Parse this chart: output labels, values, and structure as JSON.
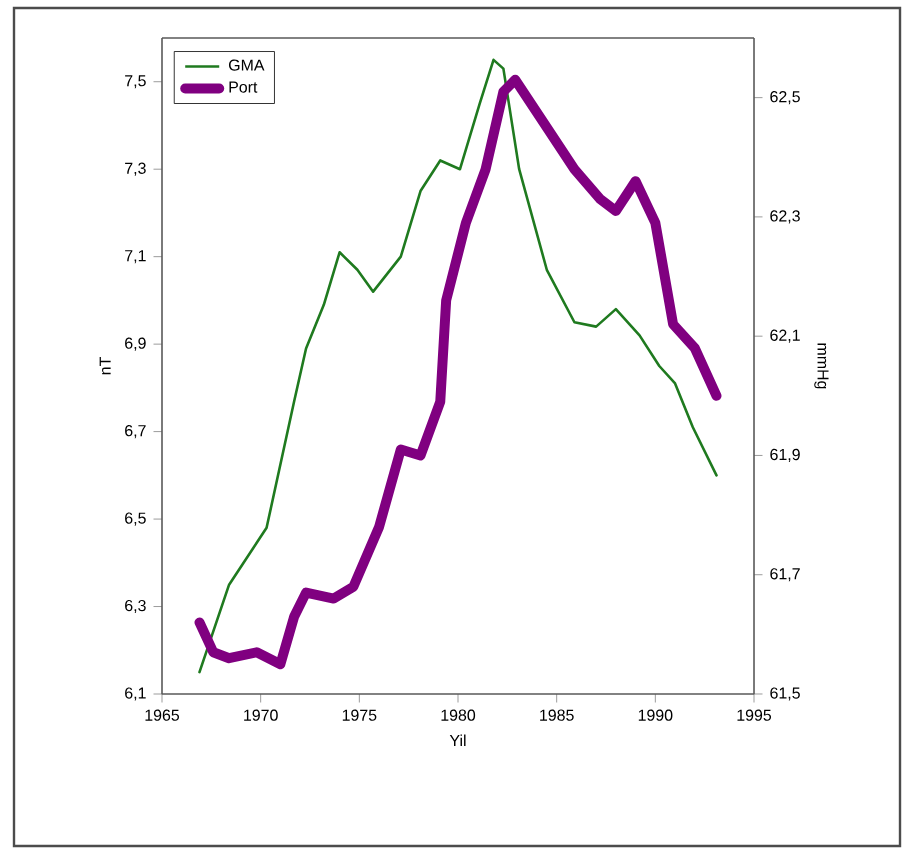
{
  "chart_data": {
    "type": "line",
    "xlabel": "Yil",
    "ylabel": "nT",
    "y2label": "mmHg",
    "xlim": [
      1965,
      1995
    ],
    "xticks": [
      1965,
      1970,
      1975,
      1980,
      1985,
      1990,
      1995
    ],
    "ylim": [
      6.1,
      7.6
    ],
    "yticks": [
      {
        "value": 6.1,
        "label": "6,1"
      },
      {
        "value": 6.3,
        "label": "6,3"
      },
      {
        "value": 6.5,
        "label": "6,5"
      },
      {
        "value": 6.7,
        "label": "6,7"
      },
      {
        "value": 6.9,
        "label": "6,9"
      },
      {
        "value": 7.1,
        "label": "7,1"
      },
      {
        "value": 7.3,
        "label": "7,3"
      },
      {
        "value": 7.5,
        "label": "7,5"
      }
    ],
    "y2lim": [
      61.5,
      62.6
    ],
    "y2ticks": [
      {
        "value": 61.5,
        "label": "61,5"
      },
      {
        "value": 61.7,
        "label": "61,7"
      },
      {
        "value": 61.9,
        "label": "61,9"
      },
      {
        "value": 62.1,
        "label": "62,1"
      },
      {
        "value": 62.3,
        "label": "62,3"
      },
      {
        "value": 62.5,
        "label": "62,5"
      }
    ],
    "legend": "top left",
    "grid": false,
    "marker": "none",
    "line_style": "solid",
    "series": [
      {
        "name": "GMA",
        "color": "#1f7a1f",
        "x": [
          1966.9,
          1968.4,
          1970.3,
          1971.7,
          1972.3,
          1973.2,
          1974.0,
          1974.9,
          1975.7,
          1977.1,
          1978.1,
          1979.1,
          1980.1,
          1981.1,
          1981.8,
          1982.3,
          1983.1,
          1984.5,
          1985.9,
          1987.0,
          1988.0,
          1989.2,
          1990.2,
          1991.0,
          1991.9,
          1993.1
        ],
        "values": [
          6.15,
          6.35,
          6.48,
          6.77,
          6.89,
          6.99,
          7.11,
          7.07,
          7.02,
          7.1,
          7.25,
          7.32,
          7.3,
          7.45,
          7.55,
          7.53,
          7.3,
          7.07,
          6.95,
          6.94,
          6.98,
          6.92,
          6.85,
          6.81,
          6.71,
          6.6
        ]
      },
      {
        "name": "Port",
        "color": "#800080",
        "axis": "y2",
        "x": [
          1966.9,
          1967.6,
          1968.4,
          1969.8,
          1971.0,
          1971.7,
          1972.3,
          1973.7,
          1974.7,
          1976.0,
          1977.1,
          1978.1,
          1979.1,
          1979.4,
          1980.4,
          1981.4,
          1982.3,
          1982.9,
          1984.1,
          1985.9,
          1987.2,
          1988.0,
          1989.0,
          1990.0,
          1990.9,
          1992.0,
          1993.1
        ],
        "values": [
          61.62,
          61.57,
          61.56,
          61.57,
          61.55,
          61.63,
          61.67,
          61.66,
          61.68,
          61.78,
          61.91,
          61.9,
          61.99,
          62.16,
          62.29,
          62.38,
          62.51,
          62.53,
          62.47,
          62.38,
          62.33,
          62.31,
          62.36,
          62.29,
          62.12,
          62.08,
          62.0
        ]
      }
    ]
  }
}
